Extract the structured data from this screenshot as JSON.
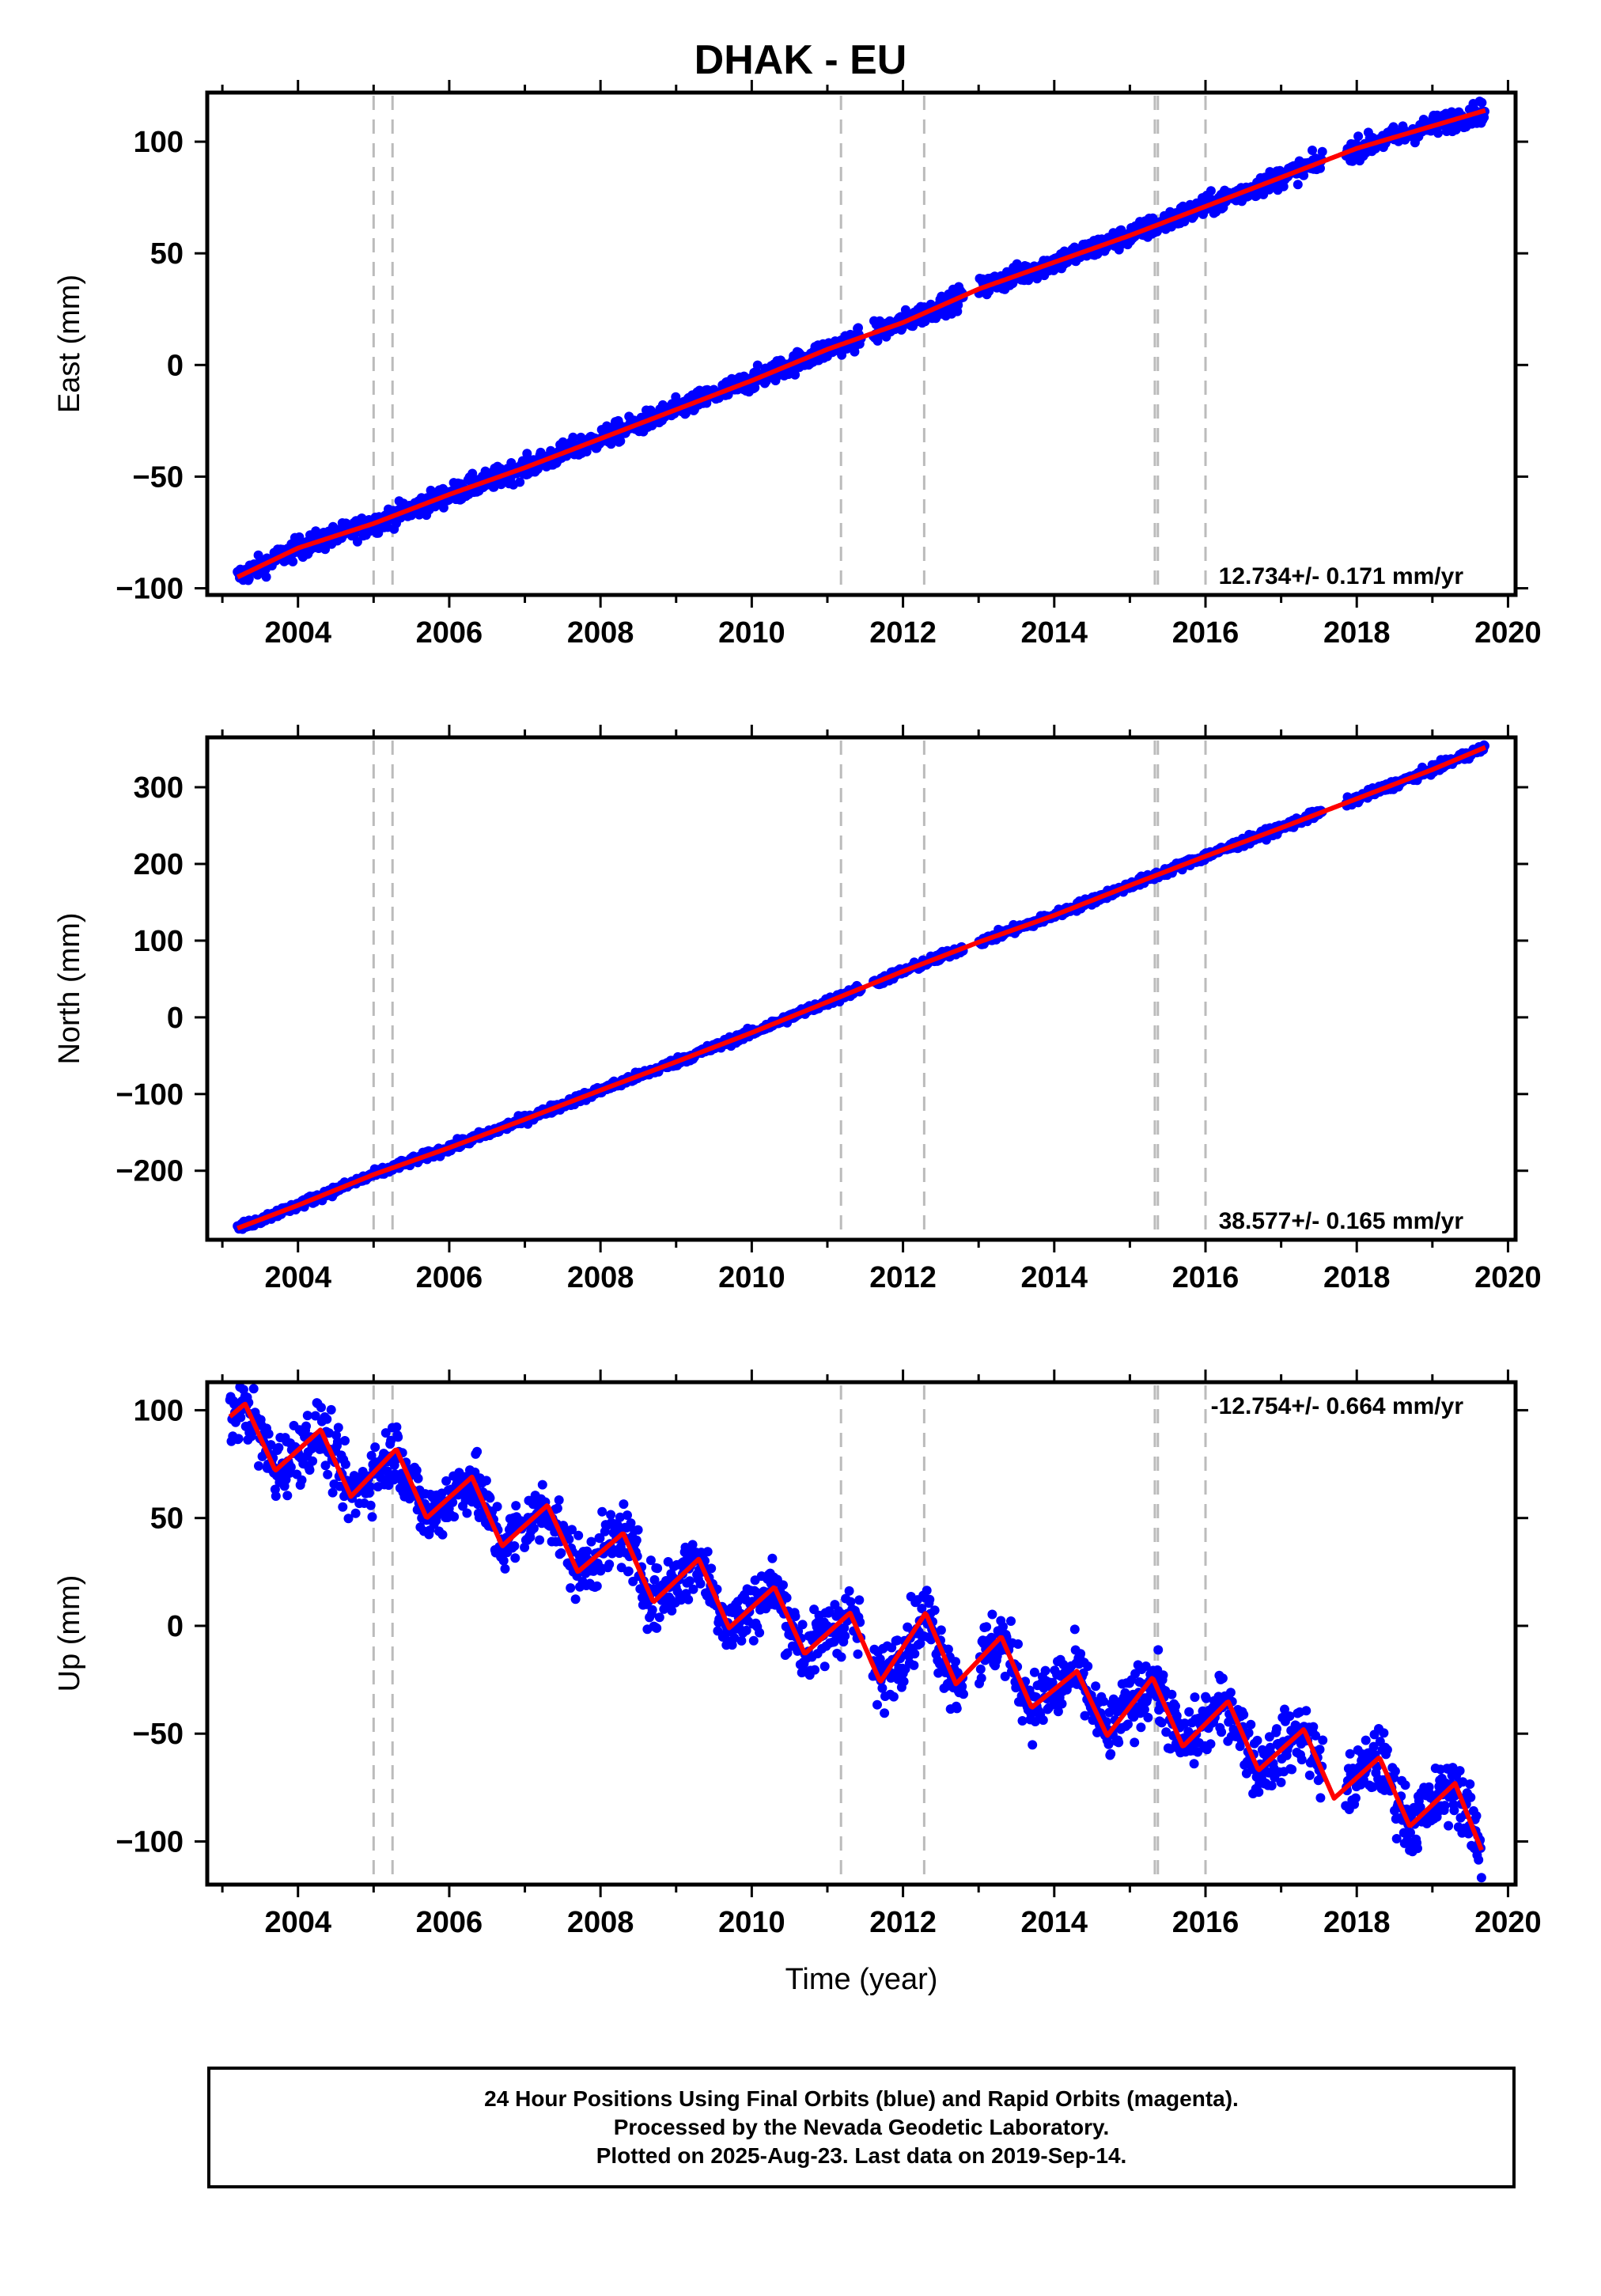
{
  "figure": {
    "title": "DHAK - EU",
    "footer": [
      "24 Hour Positions Using Final Orbits (blue) and Rapid Orbits (magenta).",
      "Processed by the Nevada Geodetic Laboratory.",
      "Plotted on 2025-Aug-23. Last data on 2019-Sep-14."
    ],
    "colors": {
      "data": "#0000ff",
      "model": "#ff0000",
      "event_lines": "#bbbbbb",
      "axes": "#000000"
    }
  },
  "chart_data": [
    {
      "type": "scatter",
      "title": "DHAK - EU",
      "xlabel": "",
      "ylabel": "East (mm)",
      "xlim": [
        2002.8,
        2020.1
      ],
      "ylim": [
        -103,
        122
      ],
      "xticks": [
        2004,
        2006,
        2008,
        2010,
        2012,
        2014,
        2016,
        2018,
        2020
      ],
      "yticks": [
        -100,
        -50,
        0,
        50,
        100
      ],
      "rate_label": "12.734+/- 0.171 mm/yr",
      "rate_label_position": "bottom-right",
      "grid": false,
      "event_lines": [
        2005.0,
        2005.25,
        2011.18,
        2012.28,
        2015.33,
        2015.37,
        2016.0
      ],
      "data_gaps": [
        [
          2011.45,
          2011.6
        ],
        [
          2012.8,
          2013.0
        ],
        [
          2017.55,
          2017.85
        ]
      ],
      "series": [
        {
          "name": "24 Hour Positions (blue)",
          "kind": "points",
          "x": [
            2003.2,
            2004.0,
            2005.0,
            2006.0,
            2007.0,
            2008.0,
            2009.0,
            2010.0,
            2011.0,
            2012.0,
            2013.0,
            2014.0,
            2015.0,
            2016.0,
            2017.0,
            2018.0,
            2019.0,
            2019.7
          ],
          "y": [
            -95,
            -82,
            -71,
            -58,
            -46,
            -33,
            -20,
            -7,
            7,
            19,
            34,
            46,
            58,
            71,
            84,
            97,
            107,
            114
          ],
          "scatter_mm": 2.5
        },
        {
          "name": "Model fit (red)",
          "kind": "line",
          "x": [
            2003.2,
            2004.0,
            2005.0,
            2006.0,
            2007.0,
            2008.0,
            2009.0,
            2010.0,
            2011.0,
            2012.0,
            2013.0,
            2014.0,
            2015.0,
            2016.0,
            2017.0,
            2018.0,
            2019.0,
            2019.7
          ],
          "y": [
            -95,
            -82,
            -71,
            -58,
            -46,
            -33,
            -20,
            -7,
            7,
            19,
            34,
            46,
            58,
            71,
            84,
            97,
            107,
            114
          ]
        }
      ]
    },
    {
      "type": "scatter",
      "xlabel": "",
      "ylabel": "North (mm)",
      "xlim": [
        2002.8,
        2020.1
      ],
      "ylim": [
        -290,
        365
      ],
      "xticks": [
        2004,
        2006,
        2008,
        2010,
        2012,
        2014,
        2016,
        2018,
        2020
      ],
      "yticks": [
        -200,
        -100,
        0,
        100,
        200,
        300
      ],
      "rate_label": "38.577+/- 0.165 mm/yr",
      "rate_label_position": "bottom-right",
      "grid": false,
      "event_lines": [
        2005.0,
        2005.25,
        2011.18,
        2012.28,
        2015.33,
        2015.37,
        2016.0
      ],
      "data_gaps": [
        [
          2011.45,
          2011.6
        ],
        [
          2012.8,
          2013.0
        ],
        [
          2017.55,
          2017.85
        ]
      ],
      "series": [
        {
          "name": "24 Hour Positions (blue)",
          "kind": "points",
          "x": [
            2003.2,
            2004.0,
            2005.0,
            2006.0,
            2007.0,
            2008.0,
            2009.0,
            2010.0,
            2011.0,
            2012.0,
            2013.0,
            2014.0,
            2015.0,
            2016.0,
            2017.0,
            2018.0,
            2019.0,
            2019.7
          ],
          "y": [
            -275,
            -245,
            -205,
            -170,
            -133,
            -95,
            -58,
            -20,
            20,
            60,
            98,
            133,
            172,
            210,
            247,
            285,
            323,
            352
          ],
          "scatter_mm": 3
        },
        {
          "name": "Model fit (red)",
          "kind": "line",
          "x": [
            2003.2,
            2004.0,
            2005.0,
            2006.0,
            2007.0,
            2008.0,
            2009.0,
            2010.0,
            2011.0,
            2012.0,
            2013.0,
            2014.0,
            2015.0,
            2016.0,
            2017.0,
            2018.0,
            2019.0,
            2019.7
          ],
          "y": [
            -275,
            -245,
            -205,
            -170,
            -133,
            -95,
            -58,
            -20,
            20,
            60,
            98,
            133,
            172,
            210,
            247,
            285,
            323,
            352
          ]
        }
      ]
    },
    {
      "type": "scatter",
      "xlabel": "Time (year)",
      "ylabel": "Up (mm)",
      "xlim": [
        2002.8,
        2020.1
      ],
      "ylim": [
        -120,
        113
      ],
      "xticks": [
        2004,
        2006,
        2008,
        2010,
        2012,
        2014,
        2016,
        2018,
        2020
      ],
      "yticks": [
        -100,
        -50,
        0,
        50,
        100
      ],
      "rate_label": "-12.754+/- 0.664 mm/yr",
      "rate_label_position": "top-right",
      "grid": false,
      "event_lines": [
        2005.0,
        2005.25,
        2011.18,
        2012.28,
        2015.33,
        2015.37,
        2016.0
      ],
      "data_gaps": [
        [
          2011.45,
          2011.6
        ],
        [
          2012.8,
          2013.0
        ],
        [
          2017.55,
          2017.85
        ]
      ],
      "series": [
        {
          "name": "24 Hour Positions (blue)",
          "kind": "points",
          "x": [
            2003.1,
            2003.3,
            2003.7,
            2004.3,
            2004.7,
            2005.3,
            2005.7,
            2006.3,
            2006.7,
            2007.3,
            2007.7,
            2008.3,
            2008.7,
            2009.3,
            2009.7,
            2010.3,
            2010.7,
            2011.3,
            2011.7,
            2012.3,
            2012.7,
            2013.3,
            2013.7,
            2014.3,
            2014.7,
            2015.3,
            2015.7,
            2016.3,
            2016.7,
            2017.3,
            2017.7,
            2018.3,
            2018.7,
            2019.3,
            2019.65
          ],
          "y": [
            97,
            103,
            72,
            91,
            60,
            82,
            50,
            69,
            37,
            56,
            25,
            43,
            11,
            31,
            -1,
            18,
            -13,
            6,
            -26,
            6,
            -27,
            -5,
            -38,
            -21,
            -51,
            -24,
            -56,
            -35,
            -67,
            -48,
            -80,
            -61,
            -93,
            -73,
            -104
          ],
          "scatter_mm": 8
        },
        {
          "name": "Model fit (red)",
          "kind": "line",
          "x": [
            2003.1,
            2003.3,
            2003.7,
            2004.3,
            2004.7,
            2005.3,
            2005.7,
            2006.3,
            2006.7,
            2007.3,
            2007.7,
            2008.3,
            2008.7,
            2009.3,
            2009.7,
            2010.3,
            2010.7,
            2011.3,
            2011.7,
            2012.3,
            2012.7,
            2013.3,
            2013.7,
            2014.3,
            2014.7,
            2015.3,
            2015.7,
            2016.3,
            2016.7,
            2017.3,
            2017.7,
            2018.3,
            2018.7,
            2019.3,
            2019.65
          ],
          "y": [
            97,
            103,
            72,
            91,
            60,
            82,
            50,
            69,
            37,
            56,
            25,
            43,
            11,
            31,
            -1,
            18,
            -13,
            6,
            -26,
            6,
            -27,
            -5,
            -38,
            -21,
            -51,
            -24,
            -56,
            -35,
            -67,
            -48,
            -80,
            -61,
            -93,
            -73,
            -104
          ]
        }
      ]
    }
  ]
}
